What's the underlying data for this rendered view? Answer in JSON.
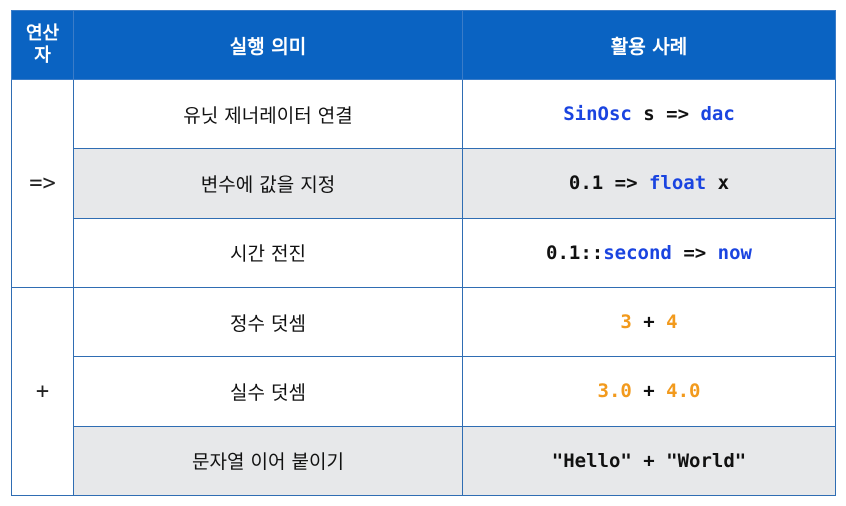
{
  "header": {
    "col_operator": [
      "연산",
      "자"
    ],
    "col_meaning": "실행 의미",
    "col_example": "활용 사례"
  },
  "groups": [
    {
      "operator": "=>",
      "rows": [
        {
          "meaning": "유닛 제너레이터 연결",
          "example": [
            {
              "t": "SinOsc",
              "c": "blue"
            },
            {
              "t": " s => ",
              "c": "plain"
            },
            {
              "t": "dac",
              "c": "blue"
            }
          ]
        },
        {
          "meaning": "변수에 값을 지정",
          "example": [
            {
              "t": "0.1 => ",
              "c": "plain"
            },
            {
              "t": "float",
              "c": "blue"
            },
            {
              "t": " x",
              "c": "plain"
            }
          ]
        },
        {
          "meaning": "시간 전진",
          "example": [
            {
              "t": "0.1::",
              "c": "plain"
            },
            {
              "t": "second",
              "c": "blue"
            },
            {
              "t": " => ",
              "c": "plain"
            },
            {
              "t": "now",
              "c": "blue"
            }
          ]
        }
      ]
    },
    {
      "operator": "+",
      "rows": [
        {
          "meaning": "정수 덧셈",
          "example": [
            {
              "t": "3",
              "c": "orange"
            },
            {
              "t": " + ",
              "c": "plain"
            },
            {
              "t": "4",
              "c": "orange"
            }
          ]
        },
        {
          "meaning": "실수 덧셈",
          "example": [
            {
              "t": "3.0",
              "c": "orange"
            },
            {
              "t": " + ",
              "c": "plain"
            },
            {
              "t": "4.0",
              "c": "orange"
            }
          ]
        },
        {
          "meaning": "문자열 이어 붙이기",
          "example": [
            {
              "t": "\"Hello\" + \"World\"",
              "c": "plain"
            }
          ]
        }
      ]
    }
  ],
  "colors": {
    "header_bg": "#0a63c2",
    "keyword": "#1a44e0",
    "number": "#f29a1d",
    "alt_row": "#e7e8ea"
  }
}
